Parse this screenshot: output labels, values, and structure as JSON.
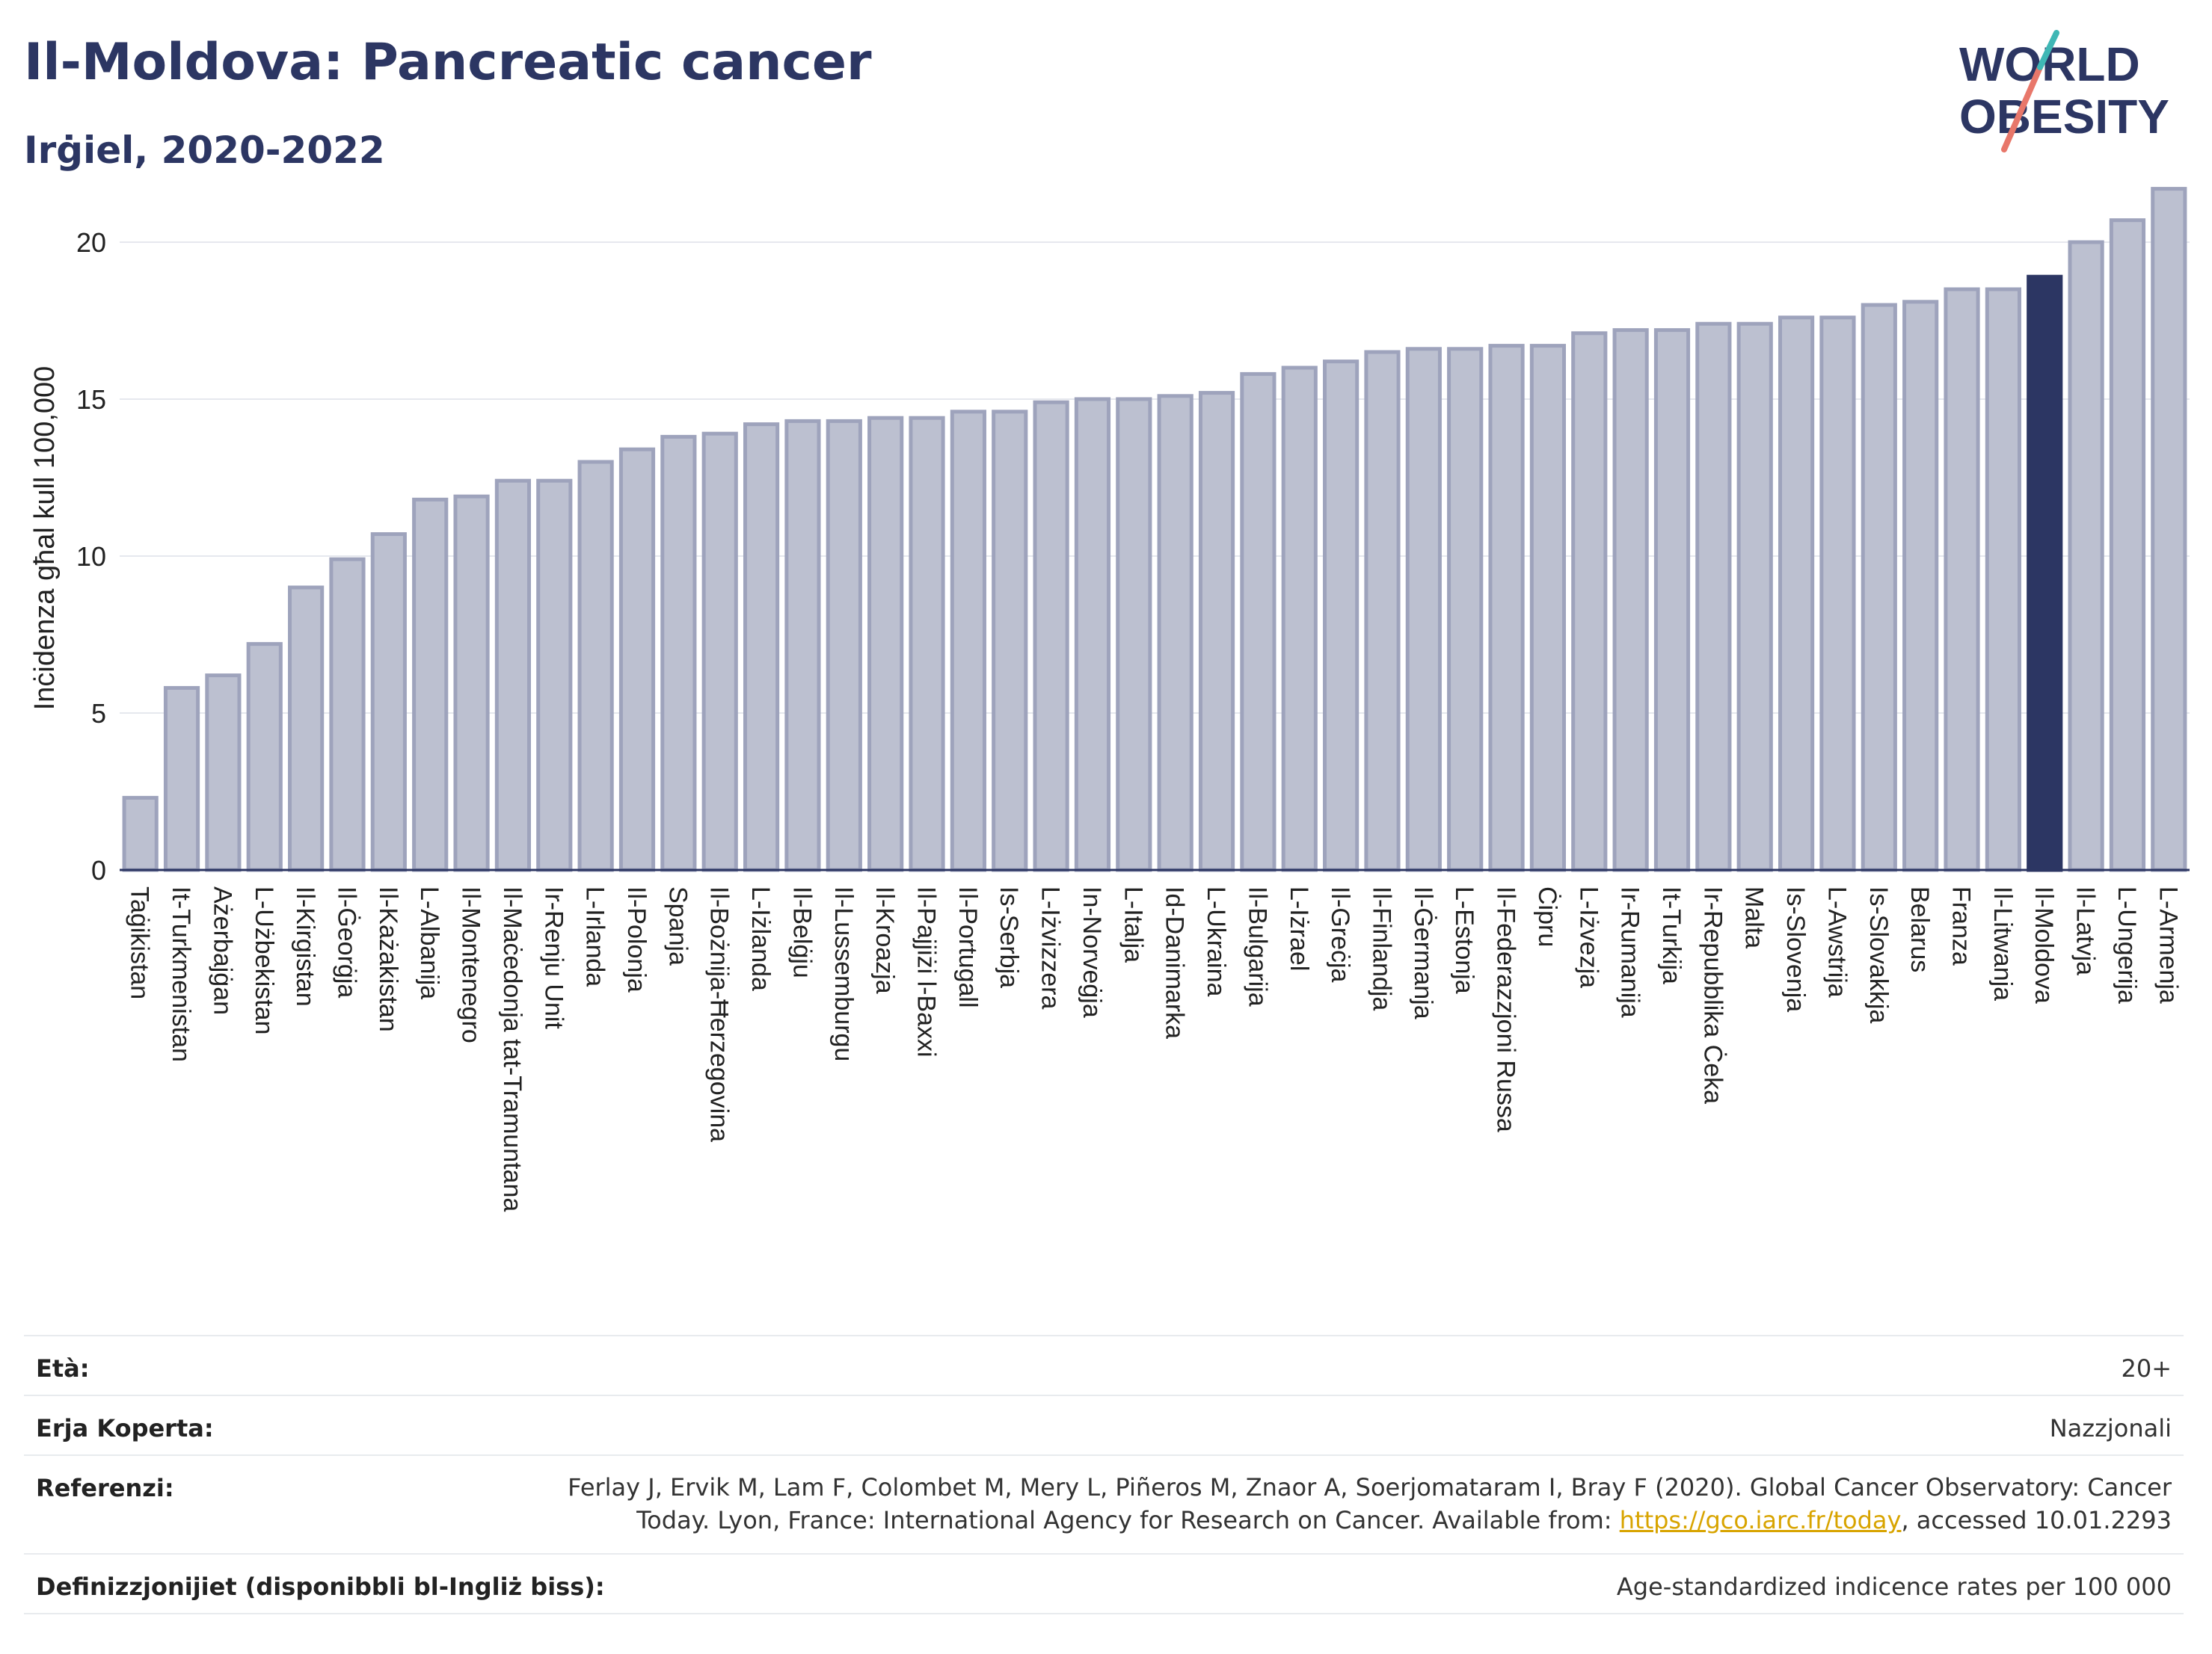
{
  "header": {
    "title": "Il-Moldova: Pancreatic cancer",
    "subtitle": "Irġiel, 2020-2022"
  },
  "logo": {
    "line1": "WORLD",
    "line2": "OBESITY"
  },
  "chart_data": {
    "type": "bar",
    "ylabel": "Inċidenza għal kull 100,000",
    "xlabel": "",
    "ylim": [
      0,
      22
    ],
    "yticks": [
      0,
      5,
      10,
      15,
      20
    ],
    "grid": true,
    "highlight": "Il-Moldova",
    "colors": {
      "bar_fill": "#bcc0d0",
      "bar_stroke": "#9ea3bc",
      "highlight": "#2c3663",
      "grid": "#e6e8ee",
      "axis": "#2c3663"
    },
    "categories": [
      "Taġikistan",
      "It-Turkmenistan",
      "Ażerbajġan",
      "L-Użbekistan",
      "Il-Kirgistan",
      "Il-Ġeorġja",
      "Il-Każakistan",
      "L-Albanija",
      "Il-Montenegro",
      "Il-Maċedonja tat-Tramuntana",
      "Ir-Renju Unit",
      "L-Irlanda",
      "Il-Polonja",
      "Spanja",
      "Il-Bożnija-Ħerzegovina",
      "L-Iżlanda",
      "Il-Belġju",
      "Il-Lussemburgu",
      "Il-Kroazja",
      "Il-Pajjiżi l-Baxxi",
      "Il-Portugall",
      "Is-Serbja",
      "L-Iżvizzera",
      "In-Norveġja",
      "L-Italja",
      "Id-Danimarka",
      "L-Ukraina",
      "Il-Bulgarija",
      "L-Iżrael",
      "Il-Greċja",
      "Il-Finlandja",
      "Il-Ġermanja",
      "L-Estonja",
      "Il-Federazzjoni Russa",
      "Ċipru",
      "L-Iżvezja",
      "Ir-Rumanija",
      "It-Turkija",
      "Ir-Repubblika Ċeka",
      "Malta",
      "Is-Slovenja",
      "L-Awstrija",
      "Is-Slovakkja",
      "Belarus",
      "Franza",
      "Il-Litwanja",
      "Il-Moldova",
      "Il-Latvja",
      "L-Ungerija",
      "L-Armenja"
    ],
    "values": [
      2.3,
      5.8,
      6.2,
      7.2,
      9.0,
      9.9,
      10.7,
      11.8,
      11.9,
      12.4,
      12.4,
      13.0,
      13.4,
      13.8,
      13.9,
      14.2,
      14.3,
      14.3,
      14.4,
      14.4,
      14.6,
      14.6,
      14.9,
      15.0,
      15.0,
      15.1,
      15.2,
      15.8,
      16.0,
      16.2,
      16.5,
      16.6,
      16.6,
      16.7,
      16.7,
      17.1,
      17.2,
      17.2,
      17.4,
      17.4,
      17.6,
      17.6,
      18.0,
      18.1,
      18.5,
      18.5,
      18.9,
      20.0,
      20.7,
      21.7
    ]
  },
  "meta": {
    "age_label": "Età:",
    "age_value": "20+",
    "coverage_label": "Erja Koperta:",
    "coverage_value": "Nazzjonali",
    "references_label": "Referenzi:",
    "references_line1": "Ferlay J, Ervik M, Lam F, Colombet M, Mery L, Piñeros M, Znaor A, Soerjomataram I, Bray F (2020). Global Cancer Observatory: Cancer",
    "references_line2_pre": "Today. Lyon, France: International Agency for Research on Cancer. Available from: ",
    "references_link": "https://gco.iarc.fr/today",
    "references_line2_post": ", accessed 10.01.2293",
    "definitions_label": "Definizzjonijiet (disponibbli bl-Ingliż biss):",
    "definitions_value": "Age-standardized indicence rates per 100 000"
  }
}
